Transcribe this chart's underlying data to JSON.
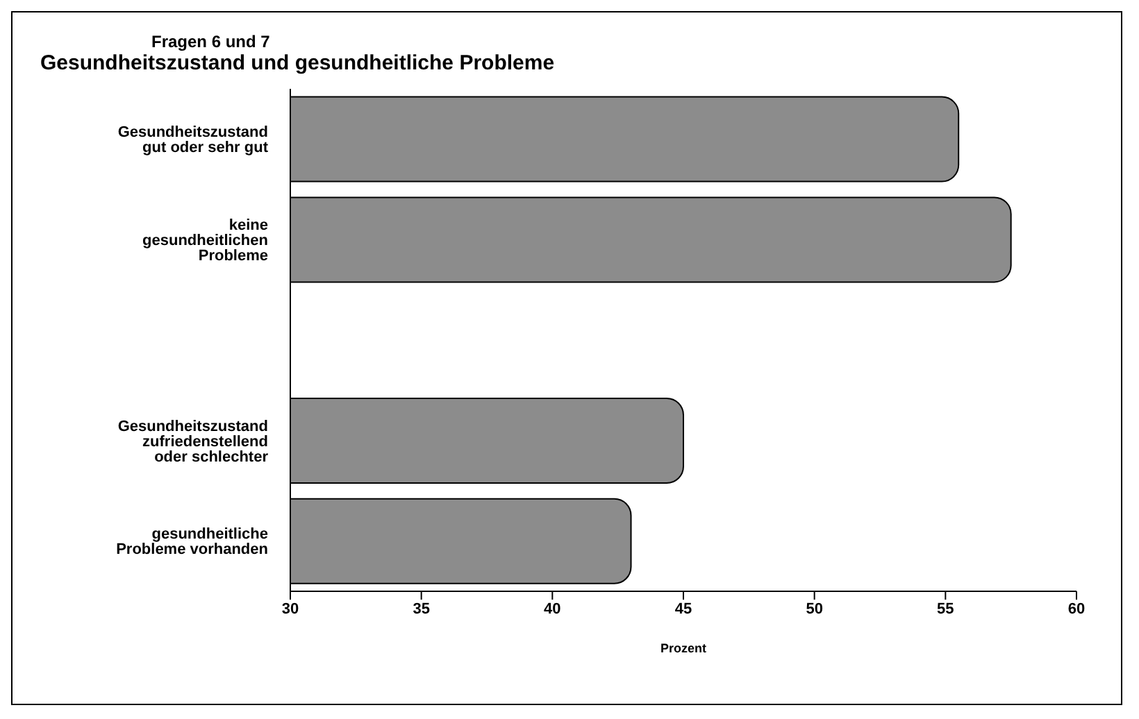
{
  "chart_data": {
    "type": "bar",
    "orientation": "horizontal",
    "subtitle": "Fragen 6 und 7",
    "title": "Gesundheitszustand und gesundheitliche Probleme",
    "xlabel": "Prozent",
    "categories": [
      "Gesundheitszustand gut oder sehr gut",
      "keine gesundheitlichen Probleme",
      null,
      "Gesundheitszustand zufriedenstellend oder schlechter",
      "gesundheitliche Probleme vorhanden"
    ],
    "values": [
      55.5,
      57.5,
      null,
      45,
      43
    ],
    "color": "#8c8c8c",
    "xlim": [
      30,
      60
    ],
    "xticks": [
      30,
      35,
      40,
      45,
      50,
      55,
      60
    ],
    "grid": false,
    "legend": false
  }
}
